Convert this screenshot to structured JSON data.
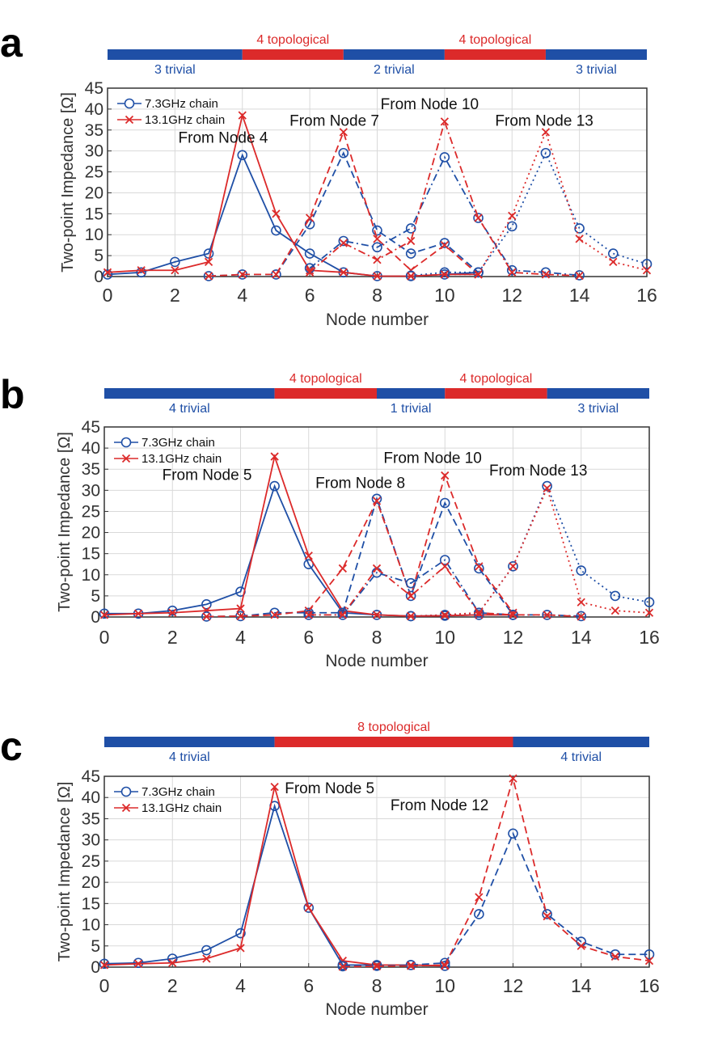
{
  "colors": {
    "blue": "#1f4fa6",
    "red": "#dc2a2a",
    "grid": "#d9d9d9",
    "axis": "#333333"
  },
  "chart_data": [
    {
      "panel_label": "a",
      "type": "line",
      "xlabel": "Node number",
      "ylabel": "Two-point Impedance [Ω]",
      "xlim": [
        0,
        16
      ],
      "ylim": [
        0,
        45
      ],
      "xticks": [
        0,
        2,
        4,
        6,
        8,
        10,
        12,
        14,
        16
      ],
      "yticks": [
        0,
        5,
        10,
        15,
        20,
        25,
        30,
        35,
        40,
        45
      ],
      "legend": [
        "7.3GHz chain",
        "13.1GHz chain"
      ],
      "bar": [
        {
          "label": "3 trivial",
          "kind": "trivial",
          "from": 0,
          "to": 4
        },
        {
          "label": "4 topological",
          "kind": "topological",
          "from": 4,
          "to": 7
        },
        {
          "label": "2 trivial",
          "kind": "trivial",
          "from": 7,
          "to": 10
        },
        {
          "label": "4 topological",
          "kind": "topological",
          "from": 10,
          "to": 13
        },
        {
          "label": "3 trivial",
          "kind": "trivial",
          "from": 13,
          "to": 16
        }
      ],
      "annotations": [
        {
          "text": "From Node 4",
          "x": 2.1,
          "y": 32
        },
        {
          "text": "From Node 7",
          "x": 5.4,
          "y": 36
        },
        {
          "text": "From Node 10",
          "x": 8.1,
          "y": 40
        },
        {
          "text": "From Node 13",
          "x": 11.5,
          "y": 36
        }
      ],
      "series": [
        {
          "name": "From Node 4 (7.3GHz)",
          "color": "blue",
          "marker": "o",
          "dash": "solid",
          "x": [
            0,
            1,
            2,
            3,
            4,
            5,
            6,
            7,
            8,
            9,
            10,
            11
          ],
          "y": [
            0.5,
            1,
            3.5,
            5.5,
            29,
            11,
            5.5,
            1,
            0.1,
            0.1,
            0.5,
            1
          ]
        },
        {
          "name": "From Node 4 (13.1GHz)",
          "color": "red",
          "marker": "x",
          "dash": "solid",
          "x": [
            0,
            1,
            2,
            3,
            4,
            5,
            6,
            7,
            8,
            9,
            10,
            11
          ],
          "y": [
            1,
            1.5,
            1.5,
            3.5,
            38.5,
            15,
            1.5,
            1,
            0.1,
            0.1,
            0.5,
            0.5
          ]
        },
        {
          "name": "From Node 7 (7.3GHz)",
          "color": "blue",
          "marker": "o",
          "dash": "dashed",
          "x": [
            3,
            4,
            5,
            6,
            7,
            8,
            9,
            10,
            11
          ],
          "y": [
            0.1,
            0.5,
            0.5,
            12.5,
            29.5,
            11,
            5.5,
            8,
            1
          ]
        },
        {
          "name": "From Node 7 (13.1GHz)",
          "color": "red",
          "marker": "x",
          "dash": "dashed",
          "x": [
            3,
            4,
            5,
            6,
            7,
            8,
            9,
            10,
            11
          ],
          "y": [
            0.1,
            0.5,
            0.5,
            14,
            34.5,
            9,
            1.5,
            7.5,
            0.5
          ]
        },
        {
          "name": "From Node 10 (7.3GHz)",
          "color": "blue",
          "marker": "o",
          "dash": "dashdot",
          "x": [
            6,
            7,
            8,
            9,
            10,
            11,
            12,
            13,
            14
          ],
          "y": [
            2,
            8.5,
            7,
            11.5,
            28.5,
            14,
            1.5,
            1,
            0.3
          ]
        },
        {
          "name": "From Node 10 (13.1GHz)",
          "color": "red",
          "marker": "x",
          "dash": "dashdot",
          "x": [
            6,
            7,
            8,
            9,
            10,
            11,
            12,
            13,
            14
          ],
          "y": [
            1,
            8,
            4,
            8.5,
            37,
            14,
            1,
            0.5,
            0.2
          ]
        },
        {
          "name": "From Node 13 (7.3GHz)",
          "color": "blue",
          "marker": "o",
          "dash": "dotted",
          "x": [
            9,
            10,
            11,
            12,
            13,
            14,
            15,
            16
          ],
          "y": [
            0.2,
            1,
            1,
            12,
            29.5,
            11.5,
            5.5,
            3
          ]
        },
        {
          "name": "From Node 13 (13.1GHz)",
          "color": "red",
          "marker": "x",
          "dash": "dotted",
          "x": [
            9,
            10,
            11,
            12,
            13,
            14,
            15,
            16
          ],
          "y": [
            0.1,
            0.5,
            0.5,
            14.5,
            34.5,
            9,
            3.5,
            1.5
          ]
        }
      ]
    },
    {
      "panel_label": "b",
      "type": "line",
      "xlabel": "Node number",
      "ylabel": "Two-point Impedance [Ω]",
      "xlim": [
        0,
        16
      ],
      "ylim": [
        0,
        45
      ],
      "xticks": [
        0,
        2,
        4,
        6,
        8,
        10,
        12,
        14,
        16
      ],
      "yticks": [
        0,
        5,
        10,
        15,
        20,
        25,
        30,
        35,
        40,
        45
      ],
      "legend": [
        "7.3GHz chain",
        "13.1GHz chain"
      ],
      "bar": [
        {
          "label": "4 trivial",
          "kind": "trivial",
          "from": 0,
          "to": 5
        },
        {
          "label": "4 topological",
          "kind": "topological",
          "from": 5,
          "to": 8
        },
        {
          "label": "1 trivial",
          "kind": "trivial",
          "from": 8,
          "to": 10
        },
        {
          "label": "4 topological",
          "kind": "topological",
          "from": 10,
          "to": 13
        },
        {
          "label": "3 trivial",
          "kind": "trivial",
          "from": 13,
          "to": 16
        }
      ],
      "annotations": [
        {
          "text": "From Node 5",
          "x": 1.7,
          "y": 32.5
        },
        {
          "text": "From Node 8",
          "x": 6.2,
          "y": 30.5
        },
        {
          "text": "From Node 10",
          "x": 8.2,
          "y": 36.5
        },
        {
          "text": "From Node 13",
          "x": 11.3,
          "y": 33.5
        }
      ],
      "series": [
        {
          "name": "From Node 5 (7.3GHz)",
          "color": "blue",
          "marker": "o",
          "dash": "solid",
          "x": [
            0,
            1,
            2,
            3,
            4,
            5,
            6,
            7,
            8,
            9,
            10,
            11,
            12
          ],
          "y": [
            0.8,
            0.8,
            1.5,
            3,
            6,
            31,
            12.5,
            1,
            0.5,
            0.2,
            0.3,
            0.5,
            0.5
          ]
        },
        {
          "name": "From Node 5 (13.1GHz)",
          "color": "red",
          "marker": "x",
          "dash": "solid",
          "x": [
            0,
            1,
            2,
            3,
            4,
            5,
            6,
            7,
            8,
            9,
            10,
            11,
            12
          ],
          "y": [
            0.5,
            0.8,
            1,
            1.5,
            2,
            38,
            14.5,
            1.5,
            0.5,
            0.2,
            0.3,
            0.5,
            0.5
          ]
        },
        {
          "name": "From Node 8 (7.3GHz)",
          "color": "blue",
          "marker": "o",
          "dash": "dashed",
          "x": [
            3,
            4,
            5,
            6,
            7,
            8,
            9,
            10,
            11,
            12
          ],
          "y": [
            0.1,
            0.2,
            1,
            1,
            1,
            28,
            5,
            27,
            11.5,
            0.5
          ]
        },
        {
          "name": "From Node 8 (13.1GHz)",
          "color": "red",
          "marker": "x",
          "dash": "dashed",
          "x": [
            3,
            4,
            5,
            6,
            7,
            8,
            9,
            10,
            11,
            12
          ],
          "y": [
            0.1,
            0.2,
            0.5,
            1.5,
            11.5,
            27.5,
            5,
            33.5,
            12,
            1
          ]
        },
        {
          "name": "From Node 10 (7.3GHz)",
          "color": "blue",
          "marker": "o",
          "dash": "dashdot",
          "x": [
            6,
            7,
            8,
            9,
            10,
            11,
            12,
            13,
            14
          ],
          "y": [
            0.5,
            0.5,
            10.5,
            8,
            13.5,
            1,
            0.5,
            0.5,
            0.2
          ]
        },
        {
          "name": "From Node 10 (13.1GHz)",
          "color": "red",
          "marker": "x",
          "dash": "dashdot",
          "x": [
            6,
            7,
            8,
            9,
            10,
            11,
            12,
            13,
            14
          ],
          "y": [
            0.5,
            0.5,
            11.5,
            5,
            12,
            1,
            0.5,
            0.5,
            0.1
          ]
        },
        {
          "name": "From Node 13 (7.3GHz)",
          "color": "blue",
          "marker": "o",
          "dash": "dotted",
          "x": [
            9,
            10,
            11,
            12,
            13,
            14,
            15,
            16
          ],
          "y": [
            0.2,
            0.5,
            1,
            12,
            31,
            11,
            5,
            3.5
          ]
        },
        {
          "name": "From Node 13 (13.1GHz)",
          "color": "red",
          "marker": "x",
          "dash": "dotted",
          "x": [
            9,
            10,
            11,
            12,
            13,
            14,
            15,
            16
          ],
          "y": [
            0.2,
            0.5,
            1,
            12,
            30.5,
            3.5,
            1.5,
            1
          ]
        }
      ]
    },
    {
      "panel_label": "c",
      "type": "line",
      "xlabel": "Node number",
      "ylabel": "Two-point Impedance [Ω]",
      "xlim": [
        0,
        16
      ],
      "ylim": [
        0,
        45
      ],
      "xticks": [
        0,
        2,
        4,
        6,
        8,
        10,
        12,
        14,
        16
      ],
      "yticks": [
        0,
        5,
        10,
        15,
        20,
        25,
        30,
        35,
        40,
        45
      ],
      "legend": [
        "7.3GHz chain",
        "13.1GHz chain"
      ],
      "bar": [
        {
          "label": "4 trivial",
          "kind": "trivial",
          "from": 0,
          "to": 5
        },
        {
          "label": "8 topological",
          "kind": "topological",
          "from": 5,
          "to": 12
        },
        {
          "label": "4 trivial",
          "kind": "trivial",
          "from": 12,
          "to": 16
        }
      ],
      "annotations": [
        {
          "text": "From Node 5",
          "x": 5.3,
          "y": 41
        },
        {
          "text": "From Node 12",
          "x": 8.4,
          "y": 37
        }
      ],
      "series": [
        {
          "name": "From Node 5 (7.3GHz)",
          "color": "blue",
          "marker": "o",
          "dash": "solid",
          "x": [
            0,
            1,
            2,
            3,
            4,
            5,
            6,
            7,
            8,
            9,
            10
          ],
          "y": [
            0.8,
            1,
            2,
            4,
            8,
            38,
            14,
            0.5,
            0.5,
            0.5,
            0.3
          ]
        },
        {
          "name": "From Node 5 (13.1GHz)",
          "color": "red",
          "marker": "x",
          "dash": "solid",
          "x": [
            0,
            1,
            2,
            3,
            4,
            5,
            6,
            7,
            8,
            9,
            10
          ],
          "y": [
            0.5,
            0.8,
            1,
            2,
            4.5,
            42.5,
            14,
            1.5,
            0.5,
            0.5,
            0.3
          ]
        },
        {
          "name": "From Node 12 (7.3GHz)",
          "color": "blue",
          "marker": "o",
          "dash": "dashed",
          "x": [
            7,
            8,
            9,
            10,
            11,
            12,
            13,
            14,
            15,
            16
          ],
          "y": [
            0.2,
            0.3,
            0.5,
            1,
            12.5,
            31.5,
            12.5,
            6,
            3,
            3
          ]
        },
        {
          "name": "From Node 12 (13.1GHz)",
          "color": "red",
          "marker": "x",
          "dash": "dashed",
          "x": [
            7,
            8,
            9,
            10,
            11,
            12,
            13,
            14,
            15,
            16
          ],
          "y": [
            0.1,
            0.2,
            0.3,
            0.5,
            16.5,
            44.5,
            12,
            5,
            2.5,
            1.5
          ]
        }
      ]
    }
  ]
}
